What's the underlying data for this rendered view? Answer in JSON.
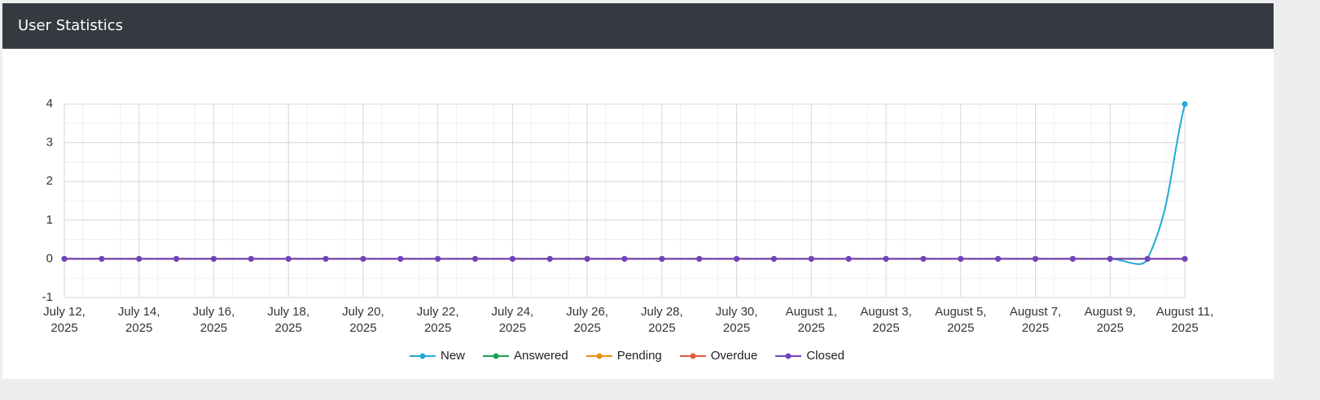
{
  "chart_data": {
    "type": "line",
    "title": "User Statistics",
    "categories": [
      "July 12, 2025",
      null,
      "July 14, 2025",
      null,
      "July 16, 2025",
      null,
      "July 18, 2025",
      null,
      "July 20, 2025",
      null,
      "July 22, 2025",
      null,
      "July 24, 2025",
      null,
      "July 26, 2025",
      null,
      "July 28, 2025",
      null,
      "July 30, 2025",
      null,
      "August 1, 2025",
      null,
      "August 3, 2025",
      null,
      "August 5, 2025",
      null,
      "August 7, 2025",
      null,
      "August 9, 2025",
      null,
      "August 11, 2025"
    ],
    "series": [
      {
        "name": "New",
        "color": "#22a9d6",
        "values": [
          0,
          0,
          0,
          0,
          0,
          0,
          0,
          0,
          0,
          0,
          0,
          0,
          0,
          0,
          0,
          0,
          0,
          0,
          0,
          0,
          0,
          0,
          0,
          0,
          0,
          0,
          0,
          0,
          0,
          0,
          4
        ]
      },
      {
        "name": "Answered",
        "color": "#1e9e4f",
        "values": [
          0,
          0,
          0,
          0,
          0,
          0,
          0,
          0,
          0,
          0,
          0,
          0,
          0,
          0,
          0,
          0,
          0,
          0,
          0,
          0,
          0,
          0,
          0,
          0,
          0,
          0,
          0,
          0,
          0,
          0,
          0
        ]
      },
      {
        "name": "Pending",
        "color": "#e8900c",
        "values": [
          0,
          0,
          0,
          0,
          0,
          0,
          0,
          0,
          0,
          0,
          0,
          0,
          0,
          0,
          0,
          0,
          0,
          0,
          0,
          0,
          0,
          0,
          0,
          0,
          0,
          0,
          0,
          0,
          0,
          0,
          0
        ]
      },
      {
        "name": "Overdue",
        "color": "#e25b3c",
        "values": [
          0,
          0,
          0,
          0,
          0,
          0,
          0,
          0,
          0,
          0,
          0,
          0,
          0,
          0,
          0,
          0,
          0,
          0,
          0,
          0,
          0,
          0,
          0,
          0,
          0,
          0,
          0,
          0,
          0,
          0,
          0
        ]
      },
      {
        "name": "Closed",
        "color": "#6f42c1",
        "values": [
          0,
          0,
          0,
          0,
          0,
          0,
          0,
          0,
          0,
          0,
          0,
          0,
          0,
          0,
          0,
          0,
          0,
          0,
          0,
          0,
          0,
          0,
          0,
          0,
          0,
          0,
          0,
          0,
          0,
          0,
          0
        ]
      }
    ],
    "ylim": [
      -1,
      4
    ],
    "yticks": [
      -1,
      0,
      1,
      2,
      3,
      4
    ],
    "grid": true
  }
}
